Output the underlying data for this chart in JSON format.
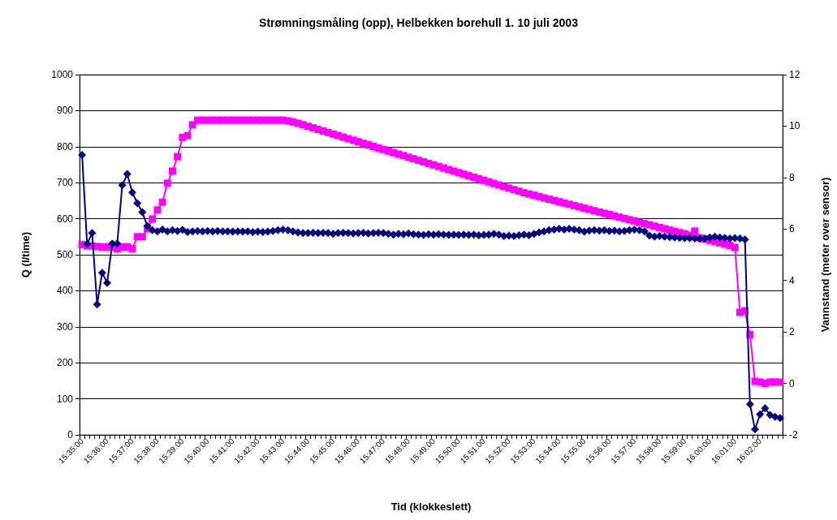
{
  "chart_data": {
    "type": "line",
    "title": "Strømningsmåling (opp), Helbekken borehull 1. 10 juli 2003",
    "xlabel": "Tid (klokkeslett)",
    "ylabel": "Q (l/time)",
    "y2label": "Vannstand (meter over sensor)",
    "categories": [
      "15:35:00",
      null,
      null,
      null,
      null,
      "15:36:00",
      null,
      null,
      null,
      null,
      "15:37:00",
      null,
      null,
      null,
      null,
      "15:38:00",
      null,
      null,
      null,
      null,
      "15:39:00",
      null,
      null,
      null,
      null,
      "15:40:00",
      null,
      null,
      null,
      null,
      "15:41:00",
      null,
      null,
      null,
      null,
      "15:42:00",
      null,
      null,
      null,
      null,
      "15:43:00",
      null,
      null,
      null,
      null,
      "15:44:00",
      null,
      null,
      null,
      null,
      "15:45:00",
      null,
      null,
      null,
      null,
      "15:46:00",
      null,
      null,
      null,
      null,
      "15:47:00",
      null,
      null,
      null,
      null,
      "15:48:00",
      null,
      null,
      null,
      null,
      "15:49:00",
      null,
      null,
      null,
      null,
      "15:50:00",
      null,
      null,
      null,
      null,
      "15:51:00",
      null,
      null,
      null,
      null,
      "15:52:00",
      null,
      null,
      null,
      null,
      "15:53:00",
      null,
      null,
      null,
      null,
      "15:54:00",
      null,
      null,
      null,
      null,
      "15:55:00",
      null,
      null,
      null,
      null,
      "15:56:00",
      null,
      null,
      null,
      null,
      "15:57:00",
      null,
      null,
      null,
      null,
      "15:58:00",
      null,
      null,
      null,
      null,
      "15:59:00",
      null,
      null,
      null,
      null,
      "16:00:00",
      null,
      null,
      null,
      null,
      "16:01:00",
      null,
      null,
      null,
      null,
      "16:02:00",
      null,
      null,
      null,
      null
    ],
    "series": [
      {
        "color": "#000080",
        "marker": "diamond",
        "values": [
          777,
          530,
          560,
          362,
          450,
          422,
          531,
          531,
          693,
          724,
          673,
          643,
          618,
          580,
          568,
          565,
          570,
          565,
          568,
          566,
          569,
          563,
          565,
          566,
          565,
          566,
          565,
          566,
          565,
          565,
          564,
          565,
          564,
          565,
          563,
          564,
          563,
          564,
          566,
          568,
          570,
          568,
          565,
          562,
          560,
          560,
          561,
          560,
          561,
          560,
          558,
          560,
          561,
          560,
          559,
          560,
          561,
          559,
          560,
          561,
          560,
          558,
          556,
          558,
          557,
          559,
          557,
          556,
          555,
          557,
          556,
          557,
          556,
          555,
          556,
          555,
          556,
          555,
          556,
          554,
          555,
          556,
          558,
          556,
          552,
          553,
          552,
          554,
          556,
          554,
          558,
          562,
          565,
          568,
          570,
          572,
          570,
          572,
          570,
          568,
          564,
          567,
          568,
          567,
          568,
          566,
          567,
          565,
          566,
          568,
          570,
          568,
          565,
          553,
          550,
          552,
          550,
          549,
          548,
          547,
          546,
          546,
          545,
          544,
          545,
          548,
          550,
          548,
          547,
          545,
          546,
          545,
          542,
          85,
          15,
          57,
          74,
          55,
          50,
          47
        ]
      },
      {
        "color": "#ff00ff",
        "marker": "square",
        "axis": "y2",
        "values": [
          5.39,
          5.34,
          5.34,
          5.32,
          5.3,
          5.3,
          5.3,
          5.23,
          5.3,
          5.3,
          5.23,
          5.7,
          5.7,
          6.01,
          6.39,
          6.74,
          7.04,
          7.78,
          8.25,
          8.81,
          9.56,
          9.63,
          10.05,
          10.23,
          10.23,
          10.23,
          10.23,
          10.23,
          10.23,
          10.23,
          10.23,
          10.23,
          10.23,
          10.23,
          10.23,
          10.23,
          10.23,
          10.23,
          10.23,
          10.23,
          10.23,
          10.2,
          10.16,
          10.11,
          10.05,
          9.99,
          9.93,
          9.87,
          9.81,
          9.75,
          9.69,
          9.63,
          9.57,
          9.51,
          9.45,
          9.39,
          9.33,
          9.27,
          9.21,
          9.15,
          9.09,
          9.03,
          8.97,
          8.91,
          8.85,
          8.79,
          8.73,
          8.67,
          8.61,
          8.55,
          8.49,
          8.43,
          8.37,
          8.31,
          8.25,
          8.19,
          8.13,
          8.07,
          8.01,
          7.95,
          7.89,
          7.83,
          7.77,
          7.71,
          7.65,
          7.59,
          7.53,
          7.47,
          7.41,
          7.36,
          7.31,
          7.26,
          7.21,
          7.16,
          7.11,
          7.06,
          7.01,
          6.96,
          6.91,
          6.86,
          6.81,
          6.76,
          6.71,
          6.66,
          6.61,
          6.56,
          6.51,
          6.46,
          6.41,
          6.36,
          6.31,
          6.26,
          6.21,
          6.16,
          6.11,
          6.06,
          6.01,
          5.96,
          5.91,
          5.86,
          5.81,
          5.76,
          5.92,
          5.66,
          5.61,
          5.56,
          5.51,
          5.46,
          5.41,
          5.36,
          5.28,
          2.76,
          2.82,
          1.89,
          0.08,
          0.05,
          0,
          0.05,
          0.05,
          0.05
        ]
      }
    ],
    "ylim": [
      0,
      1000
    ],
    "yticks": [
      0,
      100,
      200,
      300,
      400,
      500,
      600,
      700,
      800,
      900,
      1000
    ],
    "y2lim": [
      -2,
      12
    ],
    "y2ticks": [
      -2,
      0,
      2,
      4,
      6,
      8,
      10,
      12
    ],
    "grid": "y"
  }
}
